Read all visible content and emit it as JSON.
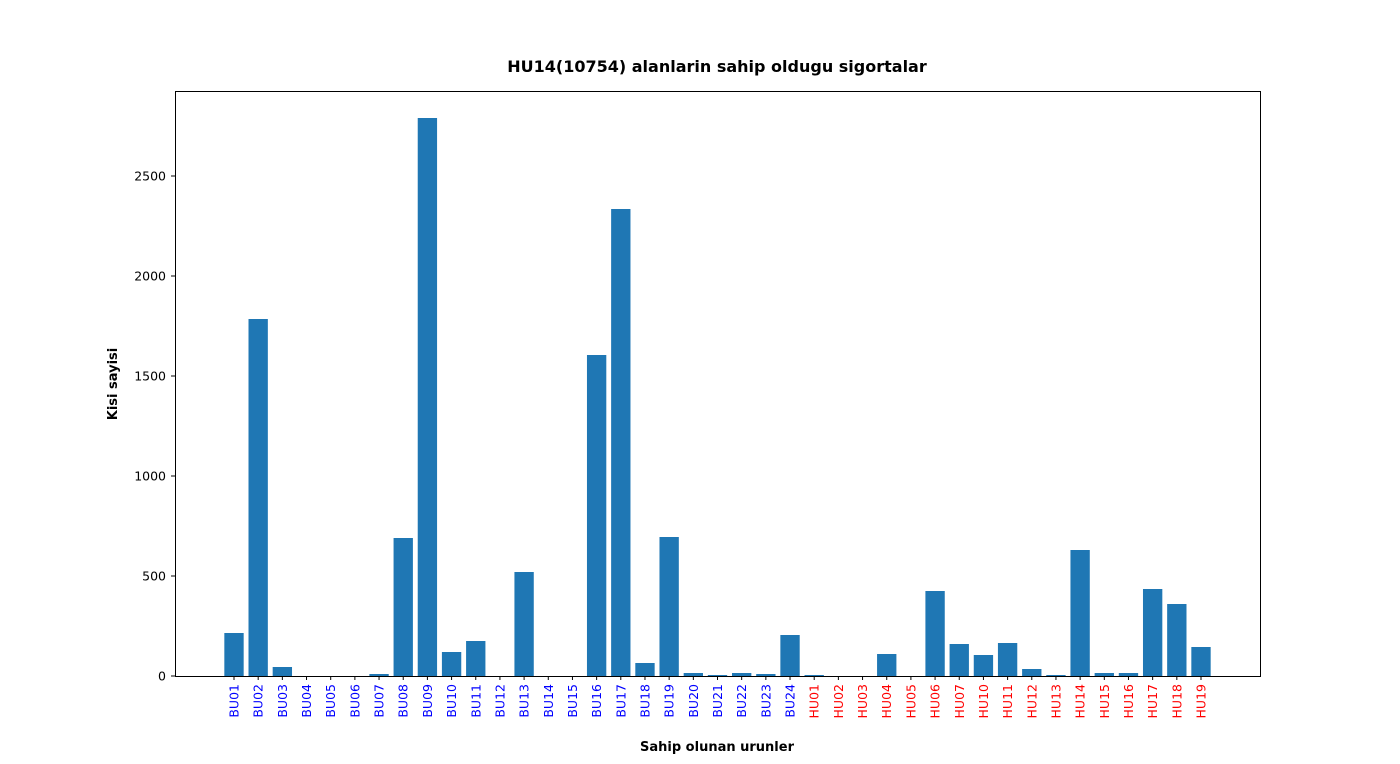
{
  "chart_data": {
    "type": "bar",
    "title": "HU14(10754) alanlarin sahip oldugu sigortalar",
    "xlabel": "Sahip olunan urunler",
    "ylabel": "Kisi sayisi",
    "ylim": [
      0,
      2925
    ],
    "yticks": [
      0,
      500,
      1000,
      1500,
      2000,
      2500
    ],
    "ytick_labels": [
      "0",
      "500",
      "1000",
      "1500",
      "2000",
      "2500"
    ],
    "categories": [
      "BU01",
      "BU02",
      "BU03",
      "BU04",
      "BU05",
      "BU06",
      "BU07",
      "BU08",
      "BU09",
      "BU10",
      "BU11",
      "BU12",
      "BU13",
      "BU14",
      "BU15",
      "BU16",
      "BU17",
      "BU18",
      "BU19",
      "BU20",
      "BU21",
      "BU22",
      "BU23",
      "BU24",
      "HU01",
      "HU02",
      "HU03",
      "HU04",
      "HU05",
      "HU06",
      "HU07",
      "HU10",
      "HU11",
      "HU12",
      "HU13",
      "HU14",
      "HU15",
      "HU16",
      "HU17",
      "HU18",
      "HU19"
    ],
    "values": [
      215,
      1785,
      45,
      0,
      0,
      0,
      10,
      690,
      2790,
      120,
      175,
      0,
      520,
      0,
      0,
      1605,
      2335,
      65,
      695,
      15,
      5,
      15,
      10,
      205,
      5,
      0,
      0,
      110,
      0,
      425,
      160,
      105,
      165,
      35,
      5,
      630,
      15,
      15,
      435,
      360,
      145
    ],
    "bar_color": "#1f77b4",
    "tick_label_colors": {
      "BU": "#0000ff",
      "HU": "#ff0000"
    }
  }
}
